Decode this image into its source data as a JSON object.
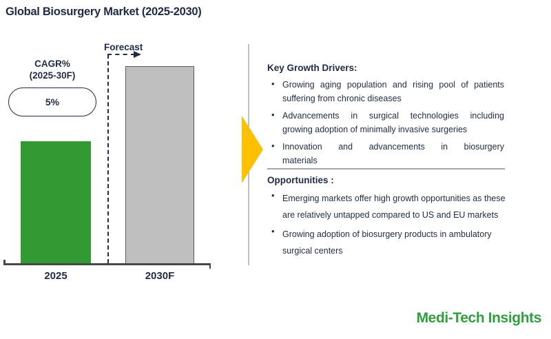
{
  "title": "Global Biosurgery Market (2025-2030)",
  "chart": {
    "cagr_label_line1": "CAGR%",
    "cagr_label_line2": "(2025-30F)",
    "cagr_value": "5%",
    "forecast_label": "Forecast"
  },
  "chart_data": {
    "type": "bar",
    "title": "Global Biosurgery Market (2025-2030)",
    "categories": [
      "2025",
      "2030F"
    ],
    "values": [
      62,
      100
    ],
    "value_scale": "relative bar height, % of 2030F bar (no value axis or data labels shown)",
    "bar_colors": [
      "#339933",
      "#BFBFBF"
    ],
    "annotations": [
      "CAGR% (2025-30F): 5%",
      "Forecast"
    ],
    "xlabel": "",
    "ylabel": "",
    "grid": false,
    "legend": false
  },
  "panel": {
    "drivers_heading": "Key Growth Drivers:",
    "drivers": [
      {
        "lines": [
          "Growing aging population and rising pool of patients",
          "suffering from chronic diseases"
        ]
      },
      {
        "lines": [
          "Advancements in surgical technologies including",
          "growing adoption of minimally invasive surgeries"
        ]
      },
      {
        "lines": [
          "Innovation and advancements in biosurgery",
          "materials"
        ]
      }
    ],
    "opportunities_heading": "Opportunities :",
    "opportunities": [
      {
        "lines": [
          "Emerging markets offer high growth opportunities as these",
          "are relatively untapped compared to US and EU markets"
        ]
      },
      {
        "lines": [
          "Growing adoption of biosurgery products in ambulatory",
          "surgical centers"
        ]
      }
    ]
  },
  "footer": {
    "logo_text": "Medi-Tech Insights"
  },
  "colors": {
    "text_dark": "#1F2A44",
    "bar_green": "#339933",
    "bar_gray": "#BFBFBF",
    "bar_gray_border": "#595959",
    "axis": "#474747",
    "connector_arrow": "#FFC000",
    "divider": "#A6A6A6",
    "logo_green": "#2E9E3E"
  }
}
